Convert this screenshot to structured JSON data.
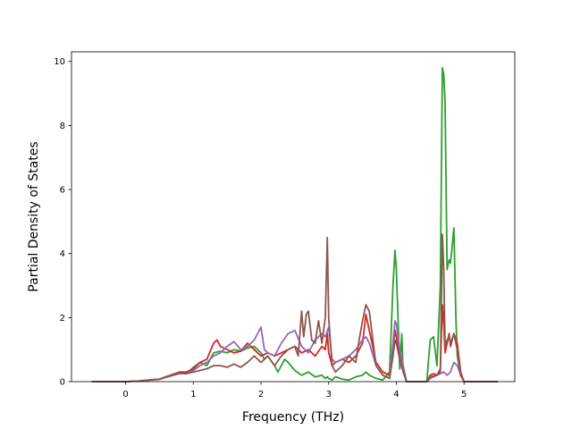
{
  "chart_data": {
    "type": "line",
    "title": "",
    "xlabel": "Frequency (THz)",
    "ylabel": "Partial Density of States",
    "xlim": [
      -0.8,
      5.75
    ],
    "ylim": [
      0,
      10.3
    ],
    "xticks": [
      0,
      1,
      2,
      3,
      4,
      5
    ],
    "yticks": [
      0,
      2,
      4,
      6,
      8,
      10
    ],
    "grid": false,
    "legend": "none",
    "series": [
      {
        "color": "#2ca02c",
        "x": [
          -0.5,
          0,
          0.2,
          0.5,
          0.8,
          0.9,
          1.0,
          1.1,
          1.2,
          1.3,
          1.4,
          1.5,
          1.6,
          1.7,
          1.8,
          1.9,
          2.0,
          2.05,
          2.1,
          2.2,
          2.25,
          2.3,
          2.35,
          2.4,
          2.5,
          2.6,
          2.7,
          2.8,
          2.9,
          2.95,
          2.98,
          3.0,
          3.05,
          3.1,
          3.2,
          3.3,
          3.4,
          3.5,
          3.55,
          3.6,
          3.7,
          3.8,
          3.9,
          3.95,
          3.98,
          4.0,
          4.05,
          4.08,
          4.1,
          4.15,
          4.2,
          4.25,
          4.45,
          4.5,
          4.55,
          4.6,
          4.65,
          4.68,
          4.7,
          4.72,
          4.75,
          4.78,
          4.8,
          4.85,
          4.88,
          4.9,
          4.95,
          5.0,
          5.5
        ],
        "y": [
          0,
          0,
          0.02,
          0.08,
          0.3,
          0.25,
          0.45,
          0.6,
          0.5,
          0.9,
          0.95,
          0.9,
          1.0,
          0.95,
          1.05,
          1.1,
          0.9,
          0.7,
          0.8,
          0.5,
          0.3,
          0.5,
          0.7,
          0.6,
          0.35,
          0.2,
          0.3,
          0.15,
          0.2,
          0.1,
          0.15,
          0.1,
          0.05,
          0.15,
          0.08,
          0.05,
          0.15,
          0.2,
          0.3,
          0.2,
          0.1,
          0.05,
          0.3,
          3.0,
          4.1,
          3.5,
          0.4,
          1.5,
          0.3,
          0,
          0,
          0,
          0,
          1.3,
          1.4,
          0.5,
          3.0,
          9.8,
          9.6,
          8.7,
          3.5,
          3.8,
          3.7,
          4.8,
          2.0,
          0.8,
          0.2,
          0,
          0
        ]
      },
      {
        "color": "#d62728",
        "x": [
          -0.5,
          0,
          0.2,
          0.5,
          0.8,
          0.9,
          1.0,
          1.1,
          1.2,
          1.3,
          1.35,
          1.4,
          1.5,
          1.6,
          1.7,
          1.8,
          1.9,
          2.0,
          2.1,
          2.2,
          2.3,
          2.4,
          2.5,
          2.6,
          2.7,
          2.8,
          2.9,
          2.95,
          2.98,
          3.0,
          3.05,
          3.1,
          3.2,
          3.3,
          3.4,
          3.5,
          3.55,
          3.6,
          3.7,
          3.8,
          3.9,
          3.95,
          3.98,
          4.0,
          4.05,
          4.1,
          4.15,
          4.2,
          4.45,
          4.5,
          4.55,
          4.6,
          4.65,
          4.68,
          4.7,
          4.72,
          4.75,
          4.78,
          4.8,
          4.85,
          4.9,
          4.95,
          5.0,
          5.5
        ],
        "y": [
          0,
          0,
          0.02,
          0.08,
          0.3,
          0.3,
          0.4,
          0.6,
          0.7,
          1.2,
          1.3,
          1.1,
          1.0,
          0.9,
          0.95,
          1.2,
          1.0,
          0.8,
          0.9,
          0.8,
          0.9,
          1.0,
          1.1,
          0.9,
          1.0,
          0.8,
          1.1,
          1.0,
          1.5,
          0.9,
          0.5,
          0.6,
          0.7,
          0.6,
          0.8,
          1.2,
          2.1,
          1.6,
          0.6,
          0.3,
          0.2,
          1.0,
          1.6,
          1.4,
          0.8,
          0.5,
          0,
          0,
          0,
          0.2,
          0.25,
          0.2,
          0.4,
          2.4,
          1.8,
          0.9,
          1.2,
          1.5,
          1.1,
          1.5,
          1.2,
          0.3,
          0,
          0
        ]
      },
      {
        "color": "#9467bd",
        "x": [
          -0.5,
          0,
          0.2,
          0.5,
          0.8,
          0.9,
          1.0,
          1.1,
          1.2,
          1.3,
          1.4,
          1.5,
          1.6,
          1.7,
          1.8,
          1.9,
          1.95,
          2.0,
          2.05,
          2.1,
          2.2,
          2.3,
          2.4,
          2.5,
          2.6,
          2.7,
          2.8,
          2.9,
          2.95,
          3.0,
          3.05,
          3.1,
          3.2,
          3.3,
          3.4,
          3.5,
          3.55,
          3.6,
          3.7,
          3.8,
          3.9,
          3.95,
          3.98,
          4.0,
          4.05,
          4.1,
          4.15,
          4.2,
          4.45,
          4.5,
          4.6,
          4.7,
          4.75,
          4.8,
          4.85,
          4.9,
          4.95,
          5.0,
          5.5
        ],
        "y": [
          0,
          0,
          0.02,
          0.08,
          0.25,
          0.25,
          0.35,
          0.5,
          0.6,
          0.8,
          0.9,
          1.1,
          1.25,
          1.0,
          1.1,
          1.3,
          1.5,
          1.7,
          1.0,
          0.9,
          0.8,
          1.2,
          1.5,
          1.6,
          1.1,
          0.9,
          1.3,
          1.5,
          1.4,
          1.7,
          0.7,
          0.6,
          0.7,
          0.8,
          1.0,
          1.3,
          1.4,
          1.2,
          0.5,
          0.2,
          0.1,
          1.2,
          1.9,
          1.8,
          1.0,
          0.5,
          0,
          0,
          0,
          0.1,
          0.2,
          0.3,
          0.2,
          0.3,
          0.6,
          0.5,
          0.2,
          0,
          0
        ]
      },
      {
        "color": "#8c564b",
        "x": [
          -0.5,
          0,
          0.2,
          0.5,
          0.8,
          0.9,
          1.0,
          1.1,
          1.2,
          1.3,
          1.4,
          1.5,
          1.6,
          1.7,
          1.8,
          1.9,
          2.0,
          2.1,
          2.2,
          2.3,
          2.4,
          2.5,
          2.55,
          2.6,
          2.63,
          2.67,
          2.7,
          2.75,
          2.8,
          2.85,
          2.9,
          2.95,
          2.98,
          3.0,
          3.05,
          3.1,
          3.2,
          3.3,
          3.4,
          3.45,
          3.5,
          3.55,
          3.6,
          3.7,
          3.8,
          3.9,
          3.95,
          3.98,
          4.0,
          4.05,
          4.1,
          4.15,
          4.2,
          4.45,
          4.5,
          4.6,
          4.65,
          4.68,
          4.7,
          4.72,
          4.75,
          4.78,
          4.8,
          4.85,
          4.9,
          4.95,
          5.0,
          5.5
        ],
        "y": [
          0,
          0,
          0.02,
          0.07,
          0.28,
          0.25,
          0.3,
          0.35,
          0.4,
          0.5,
          0.5,
          0.45,
          0.55,
          0.45,
          0.6,
          0.8,
          0.6,
          0.8,
          0.5,
          0.8,
          1.0,
          1.1,
          0.8,
          2.2,
          1.4,
          2.1,
          2.2,
          1.3,
          1.2,
          1.9,
          1.2,
          2.0,
          4.5,
          2.0,
          0.5,
          0.3,
          0.5,
          0.8,
          0.6,
          1.3,
          1.9,
          2.4,
          2.2,
          0.5,
          0.2,
          0.1,
          0.8,
          1.3,
          1.2,
          0.7,
          0.3,
          0,
          0,
          0,
          0.15,
          0.2,
          0.3,
          4.6,
          3.5,
          1.1,
          1.3,
          1.4,
          1.2,
          1.5,
          1.0,
          0.2,
          0,
          0
        ]
      }
    ],
    "axis_color": "#000000",
    "background": "#ffffff"
  }
}
